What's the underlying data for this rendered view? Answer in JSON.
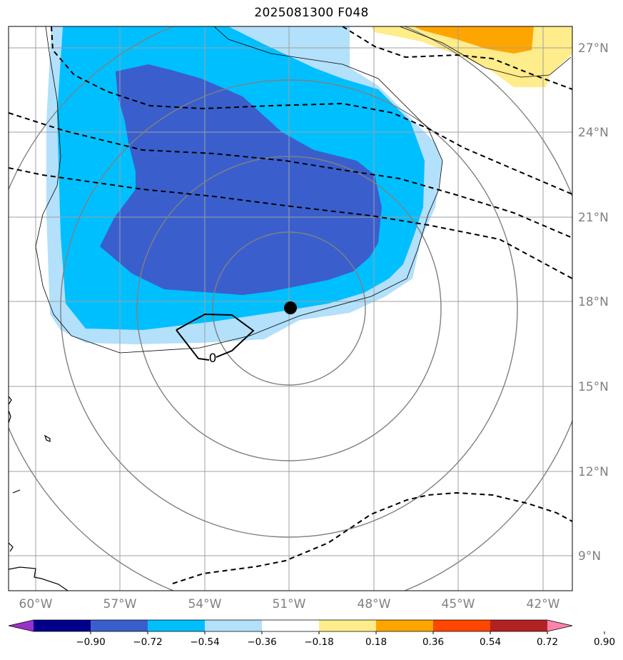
{
  "title": "2025081300 F048",
  "center_label": "0",
  "longitude_labels": [
    "60°W",
    "57°W",
    "54°W",
    "51°W",
    "48°W",
    "45°W",
    "42°W"
  ],
  "latitude_labels": [
    "27°N",
    "24°N",
    "21°N",
    "18°N",
    "15°N",
    "12°N",
    "9°N"
  ],
  "colorbar": {
    "ticks": [
      "−0.90",
      "−0.72",
      "−0.54",
      "−0.36",
      "−0.18",
      "0.18",
      "0.36",
      "0.54",
      "0.72",
      "0.90"
    ],
    "colors": [
      "#9932cc",
      "#00008b",
      "#3a5fcd",
      "#00bfff",
      "#b3e0fa",
      "#ffffff",
      "#ffec8b",
      "#ffa500",
      "#ff4500",
      "#b22222",
      "#ff82ab"
    ]
  }
}
